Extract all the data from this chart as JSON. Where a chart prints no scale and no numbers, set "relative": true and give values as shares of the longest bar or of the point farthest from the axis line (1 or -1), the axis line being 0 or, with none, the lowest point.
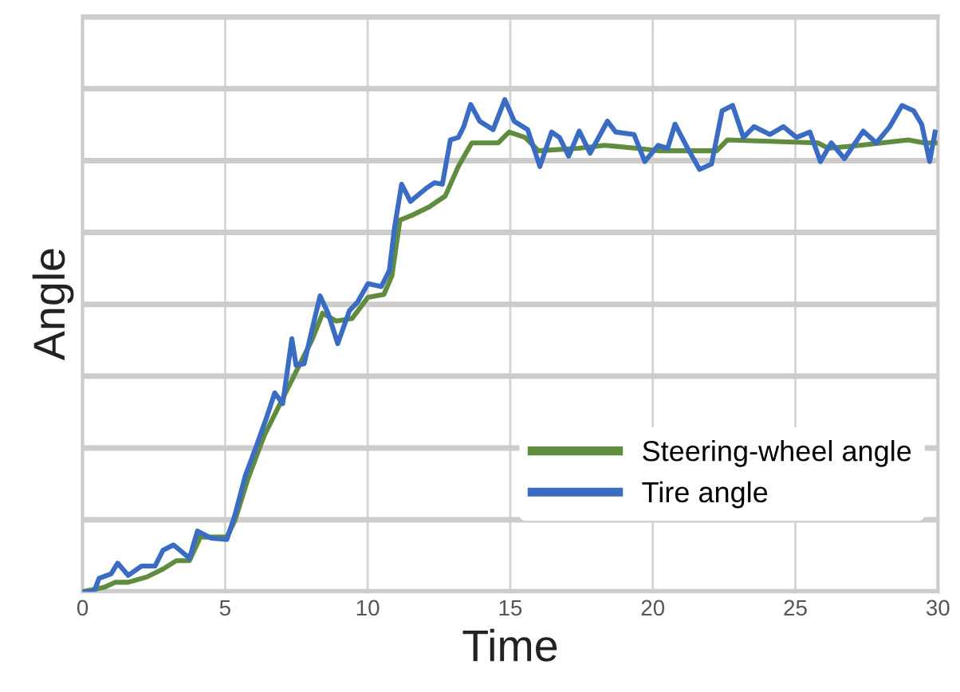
{
  "chart_data": {
    "type": "line",
    "relative": true,
    "xlabel": "Time",
    "ylabel": "Angle",
    "xlim": [
      0,
      30
    ],
    "xticks": [
      0,
      5,
      10,
      15,
      20,
      25,
      30
    ],
    "grid": true,
    "legend": "lower right",
    "tick_labels": "x",
    "marker": "none",
    "line_style": "solid",
    "series": [
      {
        "name": "Steering-wheel angle",
        "color": "#5f8c3e",
        "x": [
          0,
          0.77,
          1.14,
          1.6,
          2.26,
          2.82,
          3.29,
          3.75,
          4.13,
          5.06,
          5.34,
          5.81,
          6.37,
          6.93,
          7.49,
          8.05,
          8.42,
          8.89,
          9.45,
          10.01,
          10.57,
          10.85,
          11.13,
          11.6,
          12.16,
          12.72,
          13.18,
          13.65,
          14.58,
          14.96,
          15.52,
          15.99,
          17.39,
          18.32,
          19.44,
          20.19,
          22.24,
          22.62,
          25.79,
          26.16,
          27.28,
          28.96,
          29.52,
          29.9
        ],
        "values": [
          0,
          0.009,
          0.019,
          0.019,
          0.03,
          0.046,
          0.063,
          0.063,
          0.111,
          0.111,
          0.144,
          0.231,
          0.317,
          0.382,
          0.447,
          0.512,
          0.566,
          0.55,
          0.555,
          0.598,
          0.604,
          0.642,
          0.755,
          0.766,
          0.782,
          0.804,
          0.864,
          0.912,
          0.912,
          0.934,
          0.923,
          0.896,
          0.901,
          0.907,
          0.901,
          0.896,
          0.896,
          0.918,
          0.912,
          0.901,
          0.907,
          0.918,
          0.912,
          0.912
        ]
      },
      {
        "name": "Tire angle",
        "color": "#3a6cc4",
        "x": [
          0,
          0.4,
          0.58,
          1.0,
          1.23,
          1.6,
          2.07,
          2.54,
          2.82,
          3.19,
          3.75,
          4.03,
          4.5,
          5.06,
          5.34,
          5.71,
          6.09,
          6.46,
          6.74,
          7.02,
          7.34,
          7.49,
          7.77,
          8.05,
          8.33,
          8.61,
          8.95,
          9.36,
          9.64,
          10.01,
          10.48,
          10.76,
          10.94,
          11.19,
          11.5,
          12.06,
          12.34,
          12.62,
          12.9,
          13.18,
          13.37,
          13.61,
          13.93,
          14.4,
          14.81,
          15.14,
          15.61,
          16.04,
          16.45,
          16.73,
          17.05,
          17.42,
          17.8,
          18.41,
          18.7,
          19.34,
          19.72,
          20.19,
          20.52,
          20.78,
          21.22,
          21.64,
          22.06,
          22.43,
          22.8,
          23.18,
          23.55,
          24.11,
          24.58,
          25.04,
          25.51,
          25.88,
          26.26,
          26.72,
          27.1,
          27.38,
          27.84,
          28.31,
          28.74,
          29.15,
          29.43,
          29.71,
          29.9
        ],
        "values": [
          0,
          0,
          0.027,
          0.036,
          0.058,
          0.033,
          0.052,
          0.052,
          0.084,
          0.095,
          0.068,
          0.123,
          0.109,
          0.106,
          0.155,
          0.236,
          0.295,
          0.355,
          0.404,
          0.382,
          0.514,
          0.46,
          0.463,
          0.533,
          0.601,
          0.566,
          0.504,
          0.571,
          0.588,
          0.626,
          0.62,
          0.653,
          0.739,
          0.828,
          0.793,
          0.82,
          0.831,
          0.828,
          0.918,
          0.923,
          0.945,
          0.99,
          0.956,
          0.939,
          1.0,
          0.956,
          0.939,
          0.864,
          0.934,
          0.923,
          0.885,
          0.936,
          0.891,
          0.956,
          0.934,
          0.929,
          0.874,
          0.907,
          0.901,
          0.95,
          0.901,
          0.858,
          0.869,
          0.977,
          0.988,
          0.923,
          0.945,
          0.929,
          0.945,
          0.923,
          0.934,
          0.874,
          0.912,
          0.88,
          0.912,
          0.936,
          0.912,
          0.945,
          0.988,
          0.977,
          0.95,
          0.874,
          0.934
        ]
      }
    ]
  }
}
